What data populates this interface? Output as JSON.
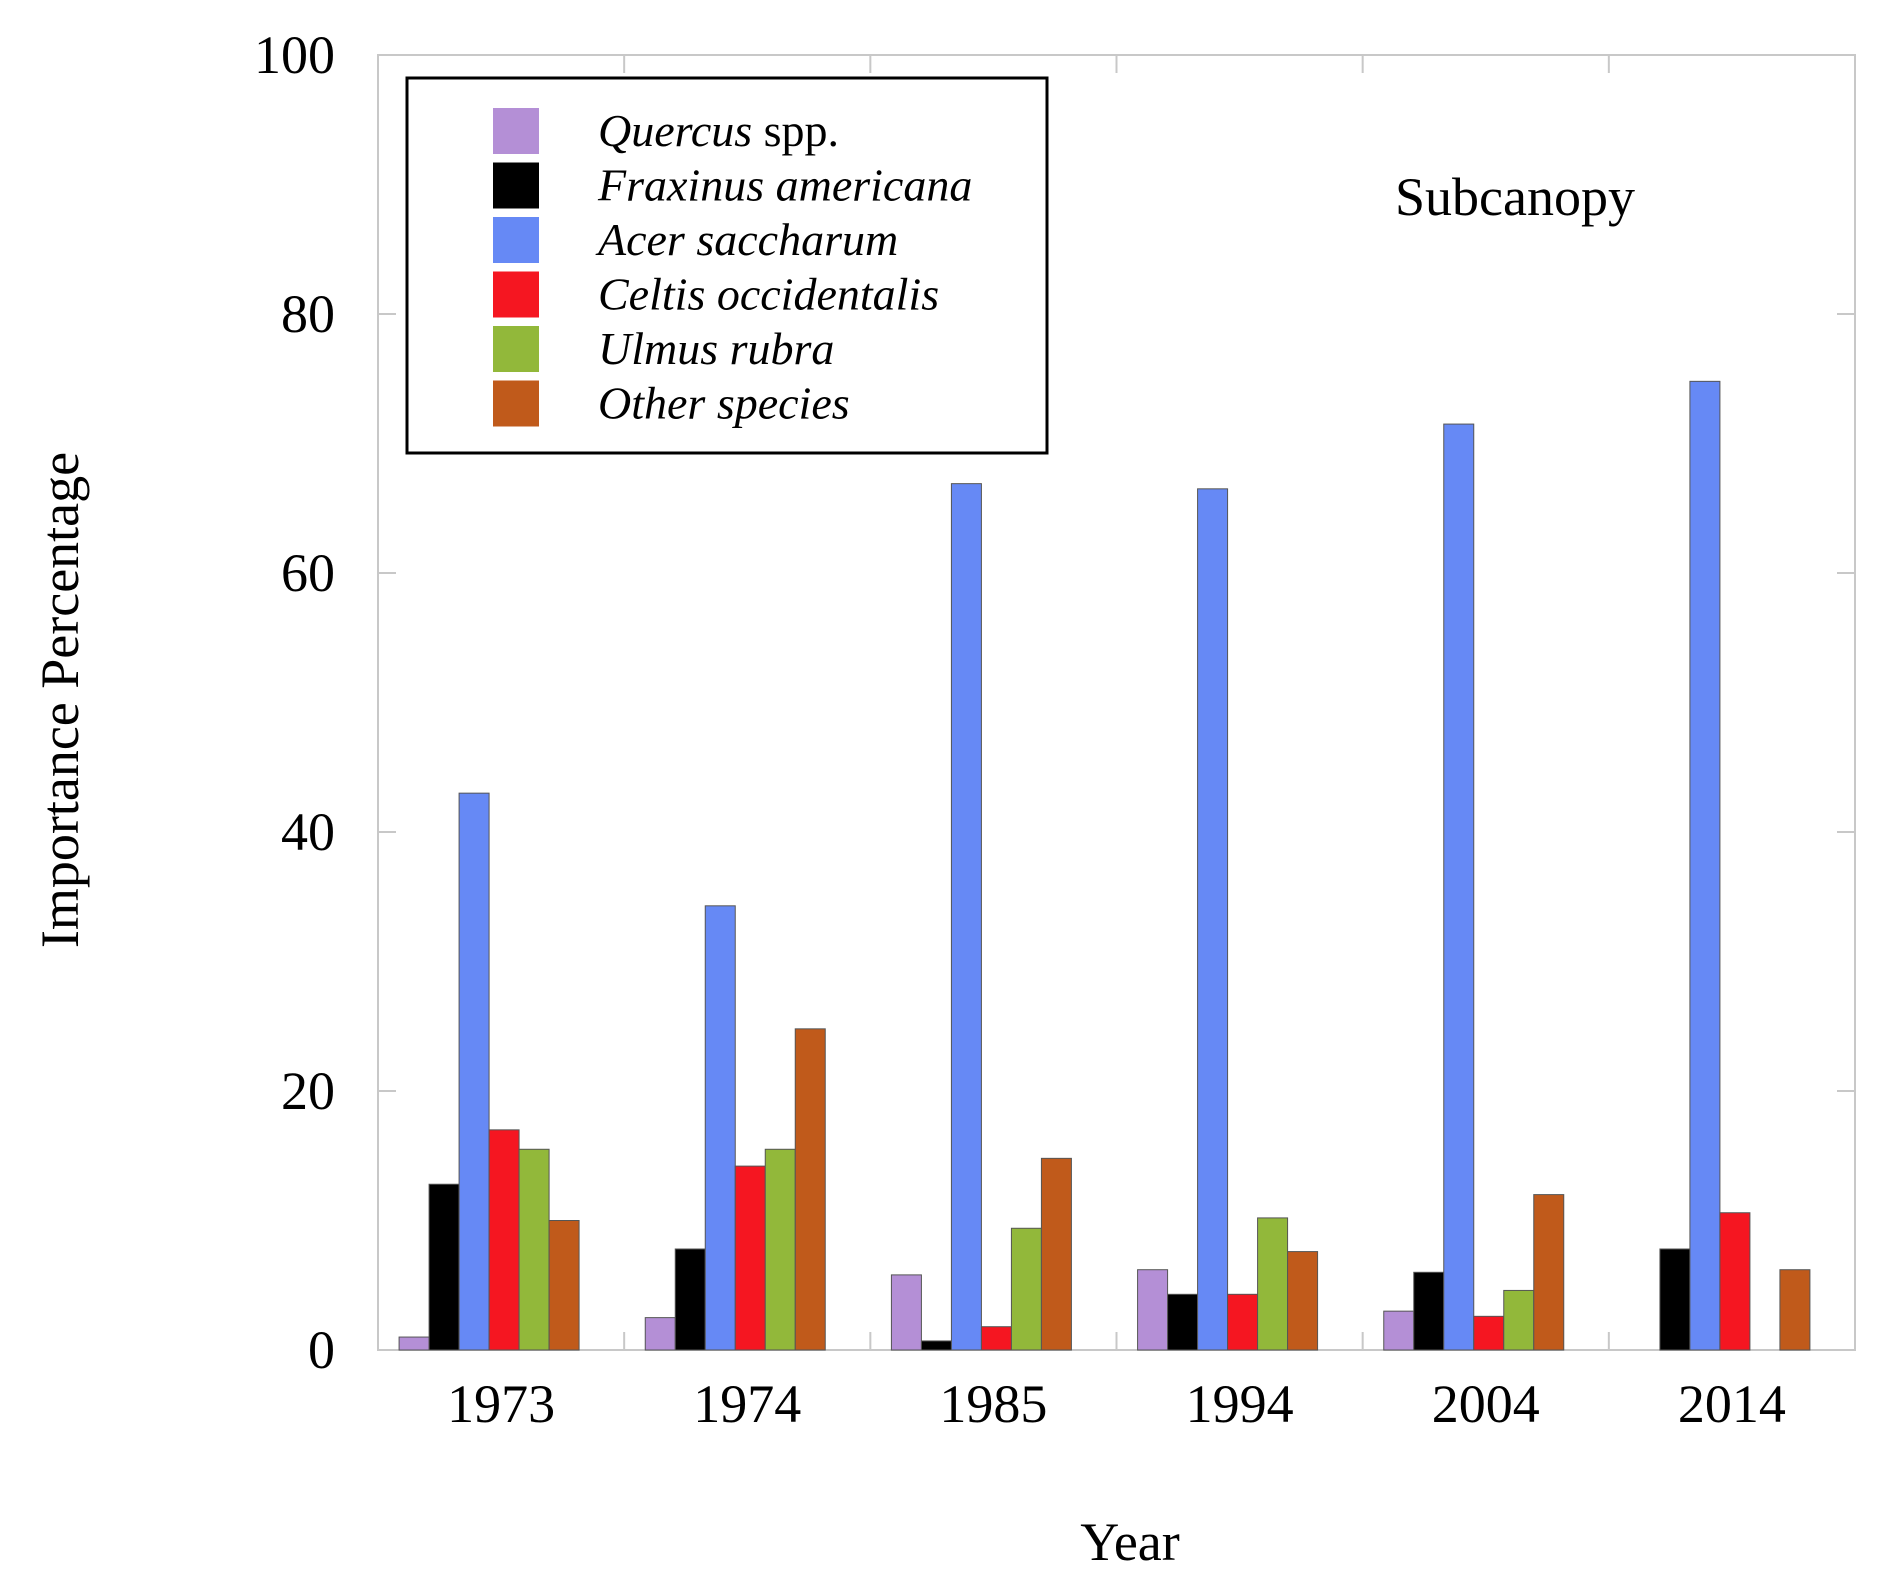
{
  "chart_data": {
    "type": "bar",
    "title": "",
    "annotation": "Subcanopy",
    "xlabel": "Year",
    "ylabel": "Importance Percentage",
    "ylim": [
      0,
      100
    ],
    "yticks": [
      "0",
      "20",
      "40",
      "60",
      "80",
      "100"
    ],
    "grid": false,
    "legend_position": "top-left",
    "categories": [
      "1973",
      "1974",
      "1985",
      "1994",
      "2004",
      "2014"
    ],
    "series": [
      {
        "name": "Quercus",
        "suffix": " spp.",
        "color": "#b48fd6",
        "values": [
          1,
          2.5,
          5.8,
          6.2,
          3,
          0
        ]
      },
      {
        "name": "Fraxinus americana",
        "suffix": "",
        "color": "#000000",
        "values": [
          12.8,
          7.8,
          0.7,
          4.3,
          6,
          7.8
        ]
      },
      {
        "name": "Acer saccharum",
        "suffix": "",
        "color": "#6689f5",
        "values": [
          43,
          34.3,
          66.9,
          66.5,
          71.5,
          74.8
        ]
      },
      {
        "name": "Celtis occidentalis",
        "suffix": "",
        "color": "#f51621",
        "values": [
          17,
          14.2,
          1.8,
          4.3,
          2.6,
          10.6
        ]
      },
      {
        "name": "Ulmus rubra",
        "suffix": "",
        "color": "#92b83a",
        "values": [
          15.5,
          15.5,
          9.4,
          10.2,
          4.6,
          0
        ]
      },
      {
        "name": "Other species",
        "suffix": "",
        "color": "#c05a1b",
        "values": [
          10,
          24.8,
          14.8,
          7.6,
          12,
          6.2
        ]
      }
    ]
  }
}
